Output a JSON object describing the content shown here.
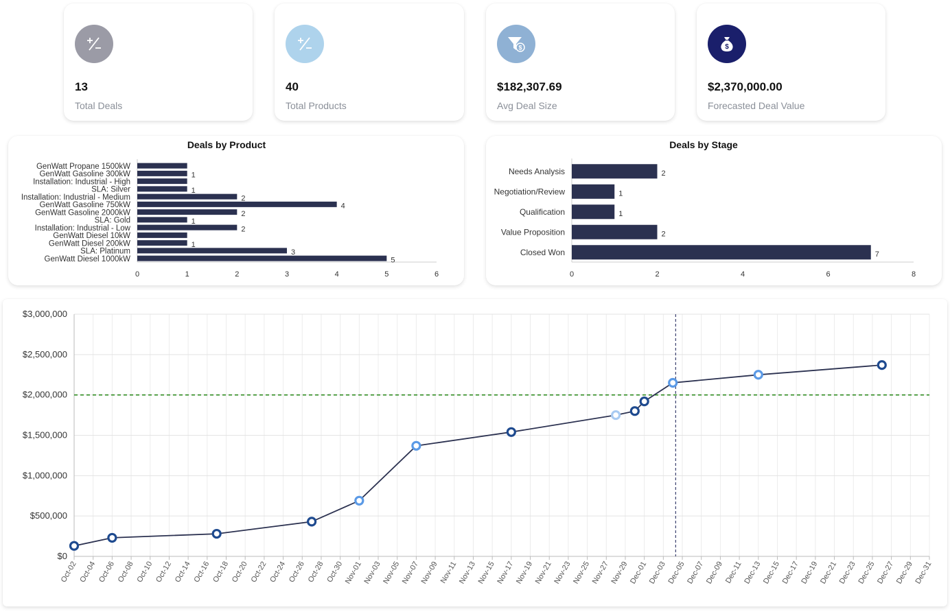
{
  "kpis": [
    {
      "value": "13",
      "label": "Total Deals",
      "icon": "plus-minus-icon",
      "color": "#9b9ba6"
    },
    {
      "value": "40",
      "label": "Total Products",
      "icon": "plus-minus-icon",
      "color": "#aed3ec"
    },
    {
      "value": "$182,307.69",
      "label": "Avg Deal Size",
      "icon": "funnel-dollar-icon",
      "color": "#8fb1d4"
    },
    {
      "value": "$2,370,000.00",
      "label": "Forecasted Deal Value",
      "icon": "money-bag-icon",
      "color": "#1a1f6b"
    }
  ],
  "chart_data": [
    {
      "type": "bar",
      "orientation": "horizontal",
      "title": "Deals by Product",
      "categories": [
        "GenWatt Propane 1500kW",
        "GenWatt Gasoline 300kW",
        "Installation: Industrial - High",
        "SLA: Silver",
        "Installation: Industrial - Medium",
        "GenWatt Gasoline 750kW",
        "GenWatt Gasoline 2000kW",
        "SLA: Gold",
        "Installation: Industrial - Low",
        "GenWatt Diesel 10kW",
        "GenWatt Diesel 200kW",
        "SLA: Platinum",
        "GenWatt Diesel 1000kW"
      ],
      "values": [
        1,
        1,
        1,
        1,
        2,
        4,
        2,
        1,
        2,
        1,
        1,
        3,
        5
      ],
      "labels": [
        "",
        "1",
        "",
        "1",
        "2",
        "4",
        "2",
        "1",
        "2",
        "",
        "1",
        "3",
        "5"
      ],
      "xlim": [
        0,
        6
      ],
      "xticks": [
        "0",
        "1",
        "2",
        "3",
        "4",
        "5",
        "6"
      ],
      "color": "#2b3150"
    },
    {
      "type": "bar",
      "orientation": "horizontal",
      "title": "Deals by Stage",
      "categories": [
        "Needs Analysis",
        "Negotiation/Review",
        "Qualification",
        "Value Proposition",
        "Closed Won"
      ],
      "values": [
        2,
        1,
        1,
        2,
        7
      ],
      "labels": [
        "2",
        "1",
        "1",
        "2",
        "7"
      ],
      "xlim": [
        0,
        8
      ],
      "xticks": [
        "0",
        "2",
        "4",
        "6",
        "8"
      ],
      "color": "#2b3150"
    },
    {
      "type": "line",
      "title": "",
      "yticks": [
        "$3,000,000",
        "$2,500,000",
        "$2,000,000",
        "$1,500,000",
        "$1,000,000",
        "$500,000",
        "$0"
      ],
      "ylim": [
        0,
        3000000
      ],
      "x_dates": [
        "Oct-02",
        "Oct-04",
        "Oct-06",
        "Oct-08",
        "Oct-10",
        "Oct-12",
        "Oct-14",
        "Oct-16",
        "Oct-18",
        "Oct-20",
        "Oct-22",
        "Oct-24",
        "Oct-26",
        "Oct-28",
        "Oct-30",
        "Nov-01",
        "Nov-03",
        "Nov-05",
        "Nov-07",
        "Nov-09",
        "Nov-11",
        "Nov-13",
        "Nov-15",
        "Nov-17",
        "Nov-19",
        "Nov-21",
        "Nov-23",
        "Nov-25",
        "Nov-27",
        "Nov-29",
        "Dec-01",
        "Dec-03",
        "Dec-05",
        "Dec-07",
        "Dec-09",
        "Dec-11",
        "Dec-13",
        "Dec-15",
        "Dec-17",
        "Dec-19",
        "Dec-21",
        "Dec-23",
        "Dec-25",
        "Dec-27",
        "Dec-29",
        "Dec-31"
      ],
      "points": [
        {
          "day": 0,
          "value": 130000,
          "style": "dark"
        },
        {
          "day": 4,
          "value": 230000,
          "style": "dark"
        },
        {
          "day": 15,
          "value": 280000,
          "style": "dark"
        },
        {
          "day": 25,
          "value": 430000,
          "style": "dark"
        },
        {
          "day": 30,
          "value": 690000,
          "style": "mid"
        },
        {
          "day": 36,
          "value": 1370000,
          "style": "mid"
        },
        {
          "day": 46,
          "value": 1540000,
          "style": "dark"
        },
        {
          "day": 57,
          "value": 1750000,
          "style": "light"
        },
        {
          "day": 59,
          "value": 1800000,
          "style": "dark"
        },
        {
          "day": 60,
          "value": 1920000,
          "style": "dark"
        },
        {
          "day": 63,
          "value": 2150000,
          "style": "mid"
        },
        {
          "day": 72,
          "value": 2250000,
          "style": "mid"
        },
        {
          "day": 85,
          "value": 2370000,
          "style": "dark"
        }
      ],
      "target_line": 2000000,
      "today_day": 63.3,
      "line_color": "#2b3150",
      "target_color": "#2e8b1f"
    }
  ]
}
